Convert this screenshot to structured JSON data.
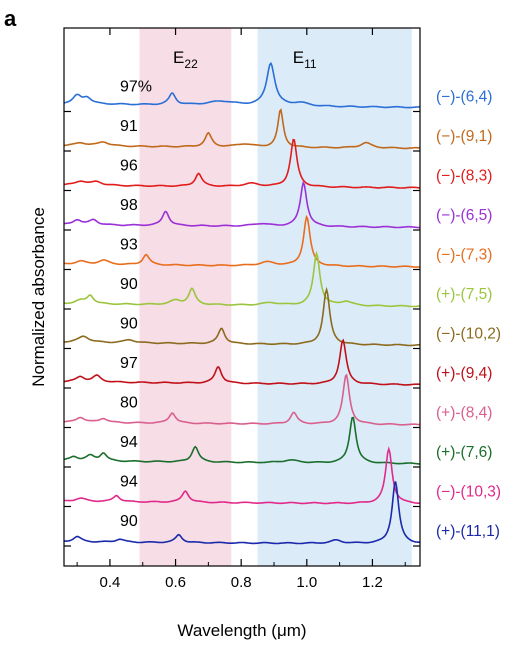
{
  "panel_label": "a",
  "chart_data": {
    "type": "line",
    "title": "",
    "xlabel": "Wavelength (μm)",
    "ylabel": "Normalized absorbance",
    "xlim": [
      0.26,
      1.345
    ],
    "x_ticks": [
      0.4,
      0.6,
      0.8,
      1.0,
      1.2
    ],
    "x_tick_labels": [
      "0.4",
      "0.6",
      "0.8",
      "1.0",
      "1.2"
    ],
    "y_ticks_count": 12,
    "grid": false,
    "bands": [
      {
        "label_main": "E",
        "label_sub": "22",
        "x_range": [
          0.49,
          0.77
        ],
        "color": "#f7dde6"
      },
      {
        "label_main": "E",
        "label_sub": "11",
        "x_range": [
          0.85,
          1.32
        ],
        "color": "#dcebf8"
      }
    ],
    "series": [
      {
        "name": "(−)-(6,4)",
        "purity": "97%",
        "color": "#2a6fd6",
        "offset": 11,
        "base": 0.15,
        "peaks": [
          [
            0.3,
            0.15,
            0.015
          ],
          [
            0.33,
            0.12,
            0.015
          ],
          [
            0.59,
            0.22,
            0.012
          ],
          [
            0.74,
            0.08,
            0.05
          ],
          [
            0.89,
            0.82,
            0.015
          ],
          [
            0.98,
            0.06,
            0.03
          ]
        ]
      },
      {
        "name": "(−)-(9,1)",
        "purity": "91",
        "color": "#c0691c",
        "offset": 10,
        "base": 0.1,
        "peaks": [
          [
            0.31,
            0.06,
            0.02
          ],
          [
            0.38,
            0.08,
            0.02
          ],
          [
            0.7,
            0.26,
            0.012
          ],
          [
            0.81,
            0.06,
            0.03
          ],
          [
            0.92,
            0.72,
            0.01
          ],
          [
            1.18,
            0.1,
            0.02
          ]
        ]
      },
      {
        "name": "(−)-(8,3)",
        "purity": "96",
        "color": "#e01c1c",
        "offset": 9,
        "base": 0.1,
        "peaks": [
          [
            0.31,
            0.08,
            0.02
          ],
          [
            0.36,
            0.07,
            0.02
          ],
          [
            0.67,
            0.25,
            0.012
          ],
          [
            0.83,
            0.06,
            0.03
          ],
          [
            0.96,
            0.92,
            0.012
          ]
        ]
      },
      {
        "name": "(−)-(6,5)",
        "purity": "98",
        "color": "#9b30d6",
        "offset": 8,
        "base": 0.1,
        "peaks": [
          [
            0.3,
            0.1,
            0.015
          ],
          [
            0.35,
            0.1,
            0.015
          ],
          [
            0.57,
            0.28,
            0.012
          ],
          [
            0.86,
            0.05,
            0.03
          ],
          [
            0.99,
            0.85,
            0.012
          ]
        ]
      },
      {
        "name": "(−)-(7,3)",
        "purity": "93",
        "color": "#e86d1c",
        "offset": 7,
        "base": 0.1,
        "peaks": [
          [
            0.31,
            0.06,
            0.02
          ],
          [
            0.38,
            0.08,
            0.02
          ],
          [
            0.51,
            0.2,
            0.012
          ],
          [
            0.88,
            0.07,
            0.03
          ],
          [
            1.0,
            0.95,
            0.012
          ]
        ]
      },
      {
        "name": "(+)-(7,5)",
        "purity": "90",
        "color": "#9bc53d",
        "offset": 6,
        "base": 0.1,
        "peaks": [
          [
            0.31,
            0.06,
            0.02
          ],
          [
            0.34,
            0.16,
            0.012
          ],
          [
            0.6,
            0.08,
            0.02
          ],
          [
            0.65,
            0.3,
            0.012
          ],
          [
            0.89,
            0.05,
            0.03
          ],
          [
            1.03,
            1.0,
            0.012
          ],
          [
            1.12,
            0.08,
            0.02
          ]
        ]
      },
      {
        "name": "(−)-(10,2)",
        "purity": "90",
        "color": "#8b6a1e",
        "offset": 5,
        "base": 0.12,
        "peaks": [
          [
            0.32,
            0.12,
            0.02
          ],
          [
            0.46,
            0.06,
            0.02
          ],
          [
            0.74,
            0.3,
            0.012
          ],
          [
            1.06,
            1.05,
            0.012
          ]
        ]
      },
      {
        "name": "(+)-(9,4)",
        "purity": "97",
        "color": "#c0101a",
        "offset": 4,
        "base": 0.12,
        "peaks": [
          [
            0.31,
            0.1,
            0.015
          ],
          [
            0.36,
            0.12,
            0.015
          ],
          [
            0.73,
            0.32,
            0.012
          ],
          [
            1.11,
            0.85,
            0.012
          ]
        ]
      },
      {
        "name": "(+)-(8,4)",
        "purity": "80",
        "color": "#d95f8d",
        "offset": 3,
        "base": 0.1,
        "peaks": [
          [
            0.31,
            0.1,
            0.015
          ],
          [
            0.38,
            0.08,
            0.015
          ],
          [
            0.59,
            0.2,
            0.012
          ],
          [
            0.96,
            0.22,
            0.012
          ],
          [
            1.12,
            0.95,
            0.012
          ]
        ]
      },
      {
        "name": "(+)-(7,6)",
        "purity": "94",
        "color": "#1a6e2c",
        "offset": 2,
        "base": 0.12,
        "peaks": [
          [
            0.29,
            0.08,
            0.015
          ],
          [
            0.34,
            0.1,
            0.015
          ],
          [
            0.38,
            0.15,
            0.012
          ],
          [
            0.66,
            0.3,
            0.012
          ],
          [
            0.95,
            0.05,
            0.03
          ],
          [
            1.14,
            0.9,
            0.012
          ]
        ]
      },
      {
        "name": "(−)-(10,3)",
        "purity": "94",
        "color": "#e0298a",
        "offset": 1,
        "base": 0.1,
        "peaks": [
          [
            0.31,
            0.06,
            0.02
          ],
          [
            0.42,
            0.12,
            0.012
          ],
          [
            0.63,
            0.22,
            0.012
          ],
          [
            1.25,
            1.05,
            0.012
          ]
        ]
      },
      {
        "name": "(+)-(11,1)",
        "purity": "90",
        "color": "#1a2aaa",
        "offset": 0,
        "base": 0.08,
        "peaks": [
          [
            0.3,
            0.1,
            0.015
          ],
          [
            0.43,
            0.06,
            0.015
          ],
          [
            0.61,
            0.15,
            0.012
          ],
          [
            1.09,
            0.06,
            0.02
          ],
          [
            1.27,
            1.2,
            0.012
          ]
        ]
      }
    ]
  }
}
